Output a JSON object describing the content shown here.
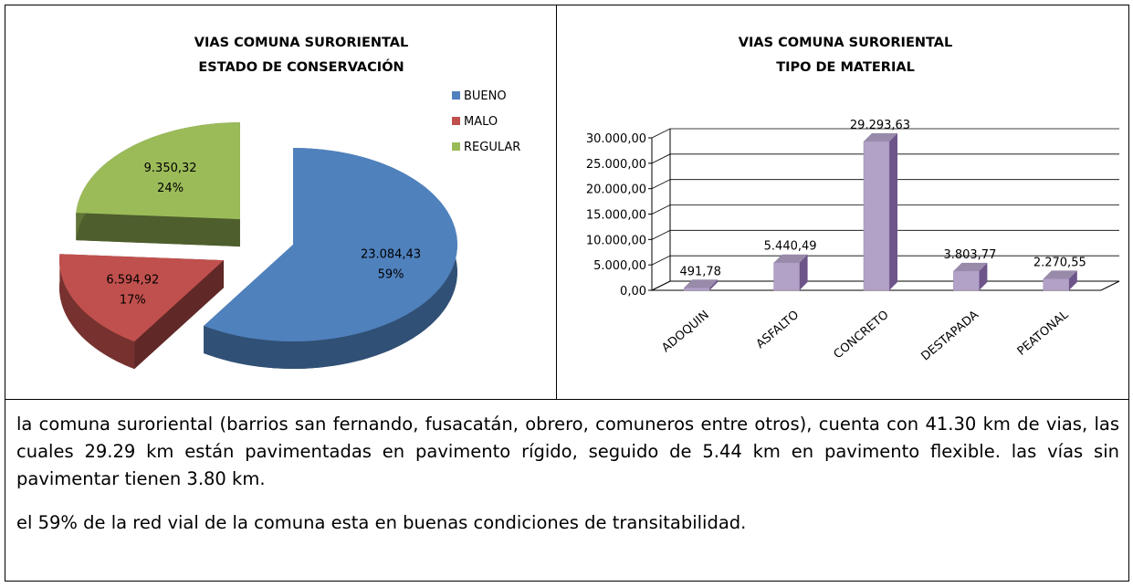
{
  "chart_data": [
    {
      "type": "pie",
      "title": "VIAS COMUNA SURORIENTAL",
      "subtitle": "ESTADO DE CONSERVACIÓN",
      "categories": [
        "BUENO",
        "MALO",
        "REGULAR"
      ],
      "values": [
        23084.43,
        6594.92,
        9350.32
      ],
      "value_labels": [
        "23.084,43",
        "6.594,92",
        "9.350,32"
      ],
      "percent_labels": [
        "59%",
        "17%",
        "24%"
      ],
      "colors": [
        "#4f81bd",
        "#c0504d",
        "#9bbb59"
      ],
      "legend": "right"
    },
    {
      "type": "bar",
      "title": "VIAS COMUNA SURORIENTAL",
      "subtitle": "TIPO DE MATERIAL",
      "categories": [
        "ADOQUIN",
        "ASFALTO",
        "CONCRETO",
        "DESTAPADA",
        "PEATONAL"
      ],
      "values": [
        491.78,
        5440.49,
        29293.63,
        3803.77,
        2270.55
      ],
      "value_labels": [
        "491,78",
        "5.440,49",
        "29.293,63",
        "3.803,77",
        "2.270,55"
      ],
      "color": "#b3a2c7",
      "ylim": [
        0,
        30000
      ],
      "yticks": [
        {
          "value": 0,
          "label": "0,00"
        },
        {
          "value": 5000,
          "label": "5.000,00"
        },
        {
          "value": 10000,
          "label": "10.000,00"
        },
        {
          "value": 15000,
          "label": "15.000,00"
        },
        {
          "value": 20000,
          "label": "20.000,00"
        },
        {
          "value": 25000,
          "label": "25.000,00"
        },
        {
          "value": 30000,
          "label": "30.000,00"
        }
      ],
      "grid": true
    }
  ],
  "text": {
    "paragraphs": [
      "la comuna suroriental (barrios san fernando, fusacatán, obrero, comuneros entre otros), cuenta con 41.30 km de vias, las cuales 29.29 km están pavimentadas en pavimento rígido, seguido de 5.44 km en pavimento flexible. las vías sin pavimentar tienen 3.80 km.",
      "el 59% de la red vial de la comuna esta en buenas condiciones de transitabilidad."
    ]
  }
}
